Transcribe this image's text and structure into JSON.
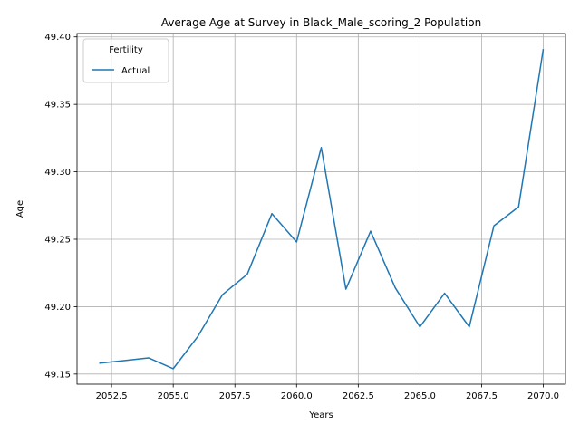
{
  "chart_data": {
    "type": "line",
    "title": "Average Age at Survey in Black_Male_scoring_2 Population",
    "xlabel": "Years",
    "ylabel": "Age",
    "xlim": [
      2051.1,
      2070.9
    ],
    "ylim": [
      49.1425,
      49.4025
    ],
    "xticks": [
      2052.5,
      2055.0,
      2057.5,
      2060.0,
      2062.5,
      2065.0,
      2067.5,
      2070.0
    ],
    "xtick_labels": [
      "2052.5",
      "2055.0",
      "2057.5",
      "2060.0",
      "2062.5",
      "2065.0",
      "2067.5",
      "2070.0"
    ],
    "yticks": [
      49.15,
      49.2,
      49.25,
      49.3,
      49.35,
      49.4
    ],
    "ytick_labels": [
      "49.15",
      "49.20",
      "49.25",
      "49.30",
      "49.35",
      "49.40"
    ],
    "grid": true,
    "legend": {
      "title": "Fertility",
      "placement": "top-left"
    },
    "series": [
      {
        "name": "Actual",
        "color": "#1f77b4",
        "x": [
          2052,
          2053,
          2054,
          2055,
          2056,
          2057,
          2058,
          2059,
          2060,
          2061,
          2062,
          2063,
          2064,
          2065,
          2066,
          2067,
          2068,
          2069,
          2070
        ],
        "y": [
          49.158,
          49.16,
          49.162,
          49.154,
          49.178,
          49.209,
          49.224,
          49.269,
          49.248,
          49.318,
          49.213,
          49.256,
          49.214,
          49.185,
          49.21,
          49.185,
          49.26,
          49.274,
          49.391
        ]
      }
    ]
  }
}
